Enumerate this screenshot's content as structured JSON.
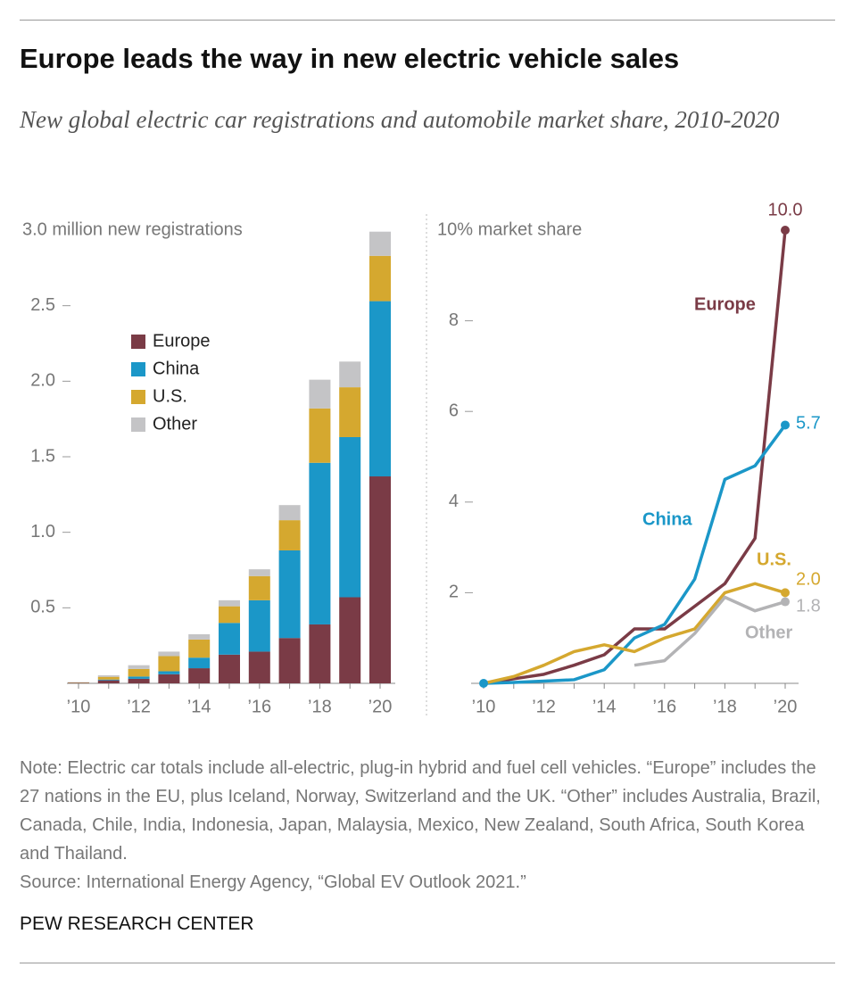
{
  "title": "Europe leads the way in new electric vehicle sales",
  "subtitle": "New global electric car registrations and automobile market share, 2010-2020",
  "note": "Note: Electric car totals include all-electric, plug-in hybrid and fuel cell vehicles. “Europe” includes the 27 nations in the EU, plus Iceland, Norway, Switzerland and the UK. “Other” includes Australia, Brazil, Canada, Chile, India, Indonesia, Japan, Malaysia, Mexico, New Zealand, South Africa, South Korea and Thailand.",
  "source": "Source: International Energy Agency, “Global EV Outlook 2021.”",
  "credit": "PEW RESEARCH CENTER",
  "chart_data": [
    {
      "type": "bar",
      "stacked": true,
      "categories": [
        "’10",
        null,
        "’12",
        null,
        "’14",
        null,
        "’16",
        null,
        "’18",
        null,
        "’20"
      ],
      "ylim": [
        0,
        3
      ],
      "yticks": [
        0.5,
        {
          "value": 1,
          "label": "1.0"
        },
        1.5,
        {
          "value": 2,
          "label": "2.0"
        },
        2.5,
        {
          "value": 3,
          "label": "3.0 million new registrations"
        }
      ],
      "legend": "upper-left",
      "series": [
        {
          "name": "Europe",
          "color": "#7a3b46",
          "values": [
            0.003,
            0.02,
            0.03,
            0.06,
            0.1,
            0.19,
            0.21,
            0.3,
            0.39,
            0.57,
            1.37
          ]
        },
        {
          "name": "China",
          "color": "#1b97c8",
          "values": [
            0.001,
            0.005,
            0.015,
            0.02,
            0.07,
            0.21,
            0.34,
            0.58,
            1.07,
            1.06,
            1.16
          ]
        },
        {
          "name": "U.S.",
          "color": "#d5a82f",
          "values": [
            0.002,
            0.018,
            0.05,
            0.1,
            0.12,
            0.11,
            0.16,
            0.2,
            0.36,
            0.33,
            0.3
          ]
        },
        {
          "name": "Other",
          "color": "#c4c4c6",
          "values": [
            0.002,
            0.01,
            0.025,
            0.03,
            0.035,
            0.04,
            0.045,
            0.1,
            0.19,
            0.17,
            0.16
          ]
        }
      ]
    },
    {
      "type": "line",
      "categories": [
        "’10",
        null,
        "’12",
        null,
        "’14",
        null,
        "’16",
        null,
        "’18",
        null,
        "’20"
      ],
      "ylim": [
        0,
        10
      ],
      "yticks": [
        2,
        4,
        6,
        8,
        {
          "value": 10,
          "label": "10% market share"
        }
      ],
      "series": [
        {
          "name": "Europe",
          "color": "#7a3b46",
          "values": [
            0,
            0.1,
            0.2,
            0.4,
            0.63,
            1.2,
            1.2,
            1.7,
            2.2,
            3.2,
            10.0
          ],
          "value_labels": [
            null,
            null,
            null,
            null,
            null,
            null,
            null,
            null,
            null,
            null,
            "10.0"
          ]
        },
        {
          "name": "China",
          "color": "#1b97c8",
          "values": [
            0,
            0.02,
            0.05,
            0.08,
            0.3,
            1.0,
            1.3,
            2.3,
            4.5,
            4.8,
            5.7
          ],
          "value_labels": [
            null,
            null,
            null,
            null,
            null,
            null,
            null,
            null,
            null,
            null,
            "5.7"
          ]
        },
        {
          "name": "U.S.",
          "color": "#d5a82f",
          "values": [
            0,
            0.15,
            0.4,
            0.7,
            0.85,
            0.7,
            1.0,
            1.2,
            2.0,
            2.2,
            2.0
          ],
          "value_labels": [
            null,
            null,
            null,
            null,
            null,
            null,
            null,
            null,
            null,
            null,
            "2.0"
          ]
        },
        {
          "name": "Other",
          "color": "#b3b3b5",
          "values": [
            null,
            null,
            null,
            null,
            null,
            0.4,
            0.5,
            1.1,
            1.9,
            1.6,
            1.8
          ],
          "value_labels": [
            null,
            null,
            null,
            null,
            null,
            null,
            null,
            null,
            null,
            null,
            "1.8"
          ]
        }
      ]
    }
  ]
}
